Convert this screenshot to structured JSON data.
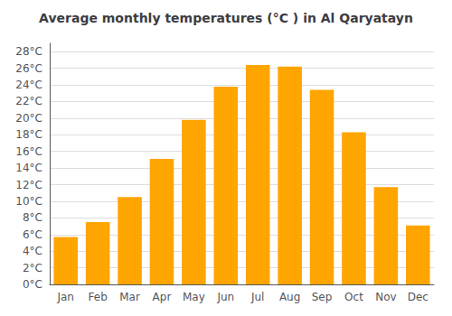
{
  "chart_data": {
    "type": "bar",
    "title": "Average monthly temperatures (°C ) in Al Qaryatayn",
    "categories": [
      "Jan",
      "Feb",
      "Mar",
      "Apr",
      "May",
      "Jun",
      "Jul",
      "Aug",
      "Sep",
      "Oct",
      "Nov",
      "Dec"
    ],
    "values": [
      5.7,
      7.5,
      10.5,
      15.1,
      19.8,
      23.8,
      26.4,
      26.2,
      23.4,
      18.3,
      11.7,
      7.1
    ],
    "color": "#FFA500",
    "ylim": [
      0,
      29
    ],
    "yticks": [
      {
        "value": 0,
        "label": "0°C"
      },
      {
        "value": 2,
        "label": "2°C"
      },
      {
        "value": 4,
        "label": "4°C"
      },
      {
        "value": 6,
        "label": "6°C"
      },
      {
        "value": 8,
        "label": "8°C"
      },
      {
        "value": 10,
        "label": "10°C"
      },
      {
        "value": 12,
        "label": "12°C"
      },
      {
        "value": 14,
        "label": "14°C"
      },
      {
        "value": 16,
        "label": "16°C"
      },
      {
        "value": 18,
        "label": "18°C"
      },
      {
        "value": 20,
        "label": "20°C"
      },
      {
        "value": 22,
        "label": "22°C"
      },
      {
        "value": 24,
        "label": "24°C"
      },
      {
        "value": 26,
        "label": "26°C"
      },
      {
        "value": 28,
        "label": "28°C"
      }
    ],
    "grid": true
  }
}
